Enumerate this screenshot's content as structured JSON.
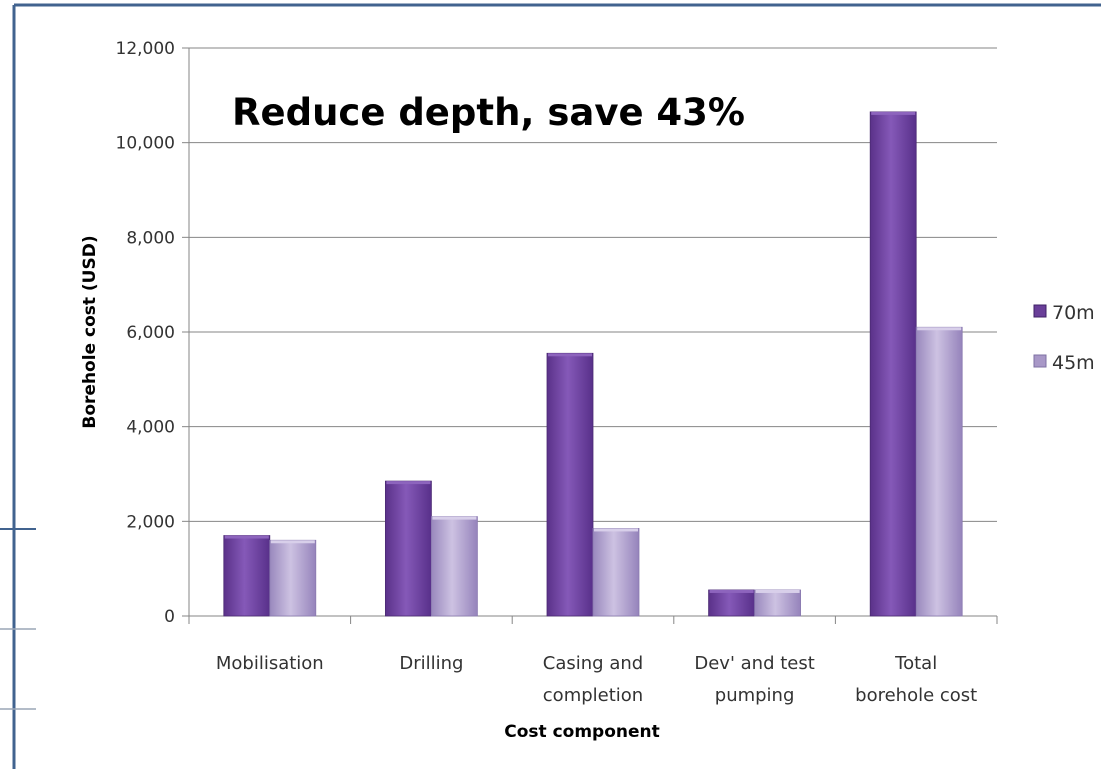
{
  "chart_data": {
    "type": "bar",
    "annotation": "Reduce depth, save 43%",
    "xlabel": "Cost component",
    "ylabel": "Borehole cost (USD)",
    "ylim": [
      0,
      12000
    ],
    "yticks": [
      0,
      2000,
      4000,
      6000,
      8000,
      10000,
      12000
    ],
    "ytick_labels": [
      "0",
      "2,000",
      "4,000",
      "6,000",
      "8,000",
      "10,000",
      "12,000"
    ],
    "categories": [
      [
        "Mobilisation"
      ],
      [
        "Drilling"
      ],
      [
        "Casing and",
        "completion"
      ],
      [
        "Dev' and test",
        "pumping"
      ],
      [
        "Total",
        "borehole cost"
      ]
    ],
    "series": [
      {
        "name": "70m",
        "values": [
          1700,
          2850,
          5550,
          550,
          10650
        ]
      },
      {
        "name": "45m",
        "values": [
          1600,
          2100,
          1850,
          550,
          6100
        ]
      }
    ],
    "legend_placement": "right",
    "grid": true,
    "colors": {
      "series_70m": "#6a3f99",
      "series_70m_light": "#8d64bd",
      "series_45m": "#a898c7",
      "series_45m_light": "#cbbfe0",
      "axis": "#868686",
      "grid": "#868686",
      "frame": "#41638f"
    }
  }
}
